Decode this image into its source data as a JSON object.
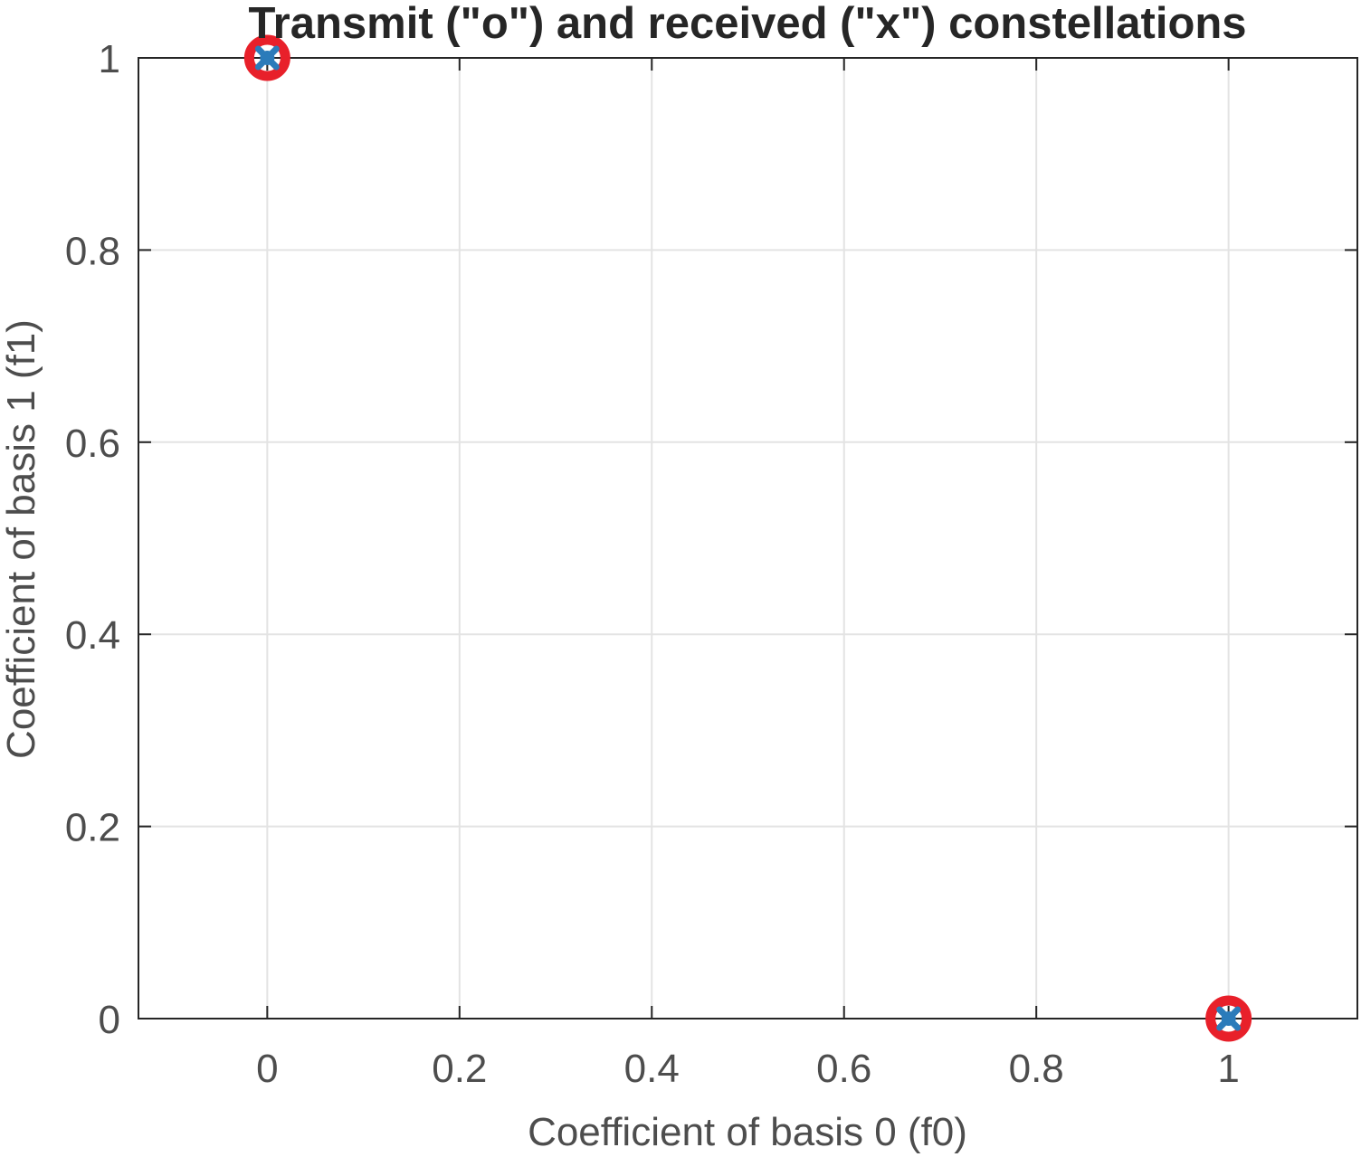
{
  "chart_data": {
    "type": "scatter",
    "title": "Transmit (\"o\") and received (\"x\") constellations",
    "xlabel": "Coefficient of basis 0 (f0)",
    "ylabel": "Coefficient of basis 1 (f1)",
    "xlim": [
      -0.134,
      1.134
    ],
    "ylim": [
      0,
      1
    ],
    "xticks": [
      0,
      0.2,
      0.4,
      0.6,
      0.8,
      1
    ],
    "xtick_labels": [
      "0",
      "0.2",
      "0.4",
      "0.6",
      "0.8",
      "1"
    ],
    "yticks": [
      0,
      0.2,
      0.4,
      0.6,
      0.8,
      1
    ],
    "ytick_labels": [
      "0",
      "0.2",
      "0.4",
      "0.6",
      "0.8",
      "1"
    ],
    "grid": true,
    "series": [
      {
        "marker": "o",
        "color": "#e8202a",
        "x": [
          0,
          1
        ],
        "y": [
          1,
          0
        ]
      },
      {
        "marker": "x",
        "color": "#2b7bba",
        "x": [
          0,
          1
        ],
        "y": [
          1,
          0
        ]
      }
    ]
  }
}
